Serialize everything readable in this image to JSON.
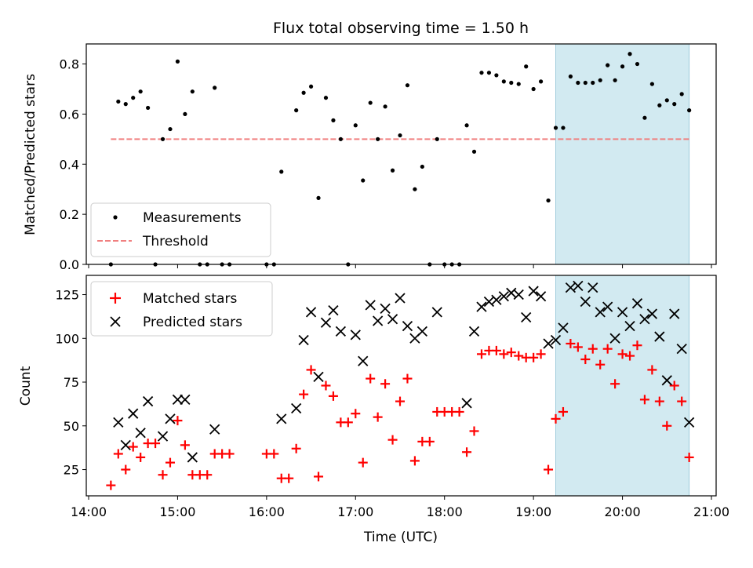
{
  "chart_data": [
    {
      "type": "scatter",
      "title": "Flux total observing time = 1.50 h",
      "ylabel": "Matched/Predicted stars",
      "xlim": [
        "14:00",
        "21:00"
      ],
      "ylim": [
        0,
        0.88
      ],
      "yticks": [
        "0.0",
        "0.2",
        "0.4",
        "0.6",
        "0.8"
      ],
      "legend_position": "lower-left",
      "highlight_window": {
        "start": "19:15",
        "end": "20:45",
        "color": "#add8e6"
      },
      "threshold": {
        "name": "Threshold",
        "value": 0.5,
        "start": "14:15",
        "end": "20:45",
        "color": "#f08080"
      },
      "series": [
        {
          "name": "Measurements",
          "color": "#000000",
          "points": [
            [
              "14:15",
              0.0
            ],
            [
              "14:20",
              0.65
            ],
            [
              "14:25",
              0.64
            ],
            [
              "14:30",
              0.665
            ],
            [
              "14:35",
              0.69
            ],
            [
              "14:40",
              0.625
            ],
            [
              "14:45",
              0.0
            ],
            [
              "14:50",
              0.5
            ],
            [
              "14:55",
              0.54
            ],
            [
              "15:00",
              0.81
            ],
            [
              "15:05",
              0.6
            ],
            [
              "15:10",
              0.69
            ],
            [
              "15:15",
              0.0
            ],
            [
              "15:20",
              0.0
            ],
            [
              "15:25",
              0.705
            ],
            [
              "15:30",
              0.0
            ],
            [
              "15:35",
              0.0
            ],
            [
              "16:00",
              0.0
            ],
            [
              "16:05",
              0.0
            ],
            [
              "16:10",
              0.37
            ],
            [
              "16:20",
              0.615
            ],
            [
              "16:25",
              0.685
            ],
            [
              "16:30",
              0.71
            ],
            [
              "16:35",
              0.265
            ],
            [
              "16:40",
              0.665
            ],
            [
              "16:45",
              0.575
            ],
            [
              "16:50",
              0.5
            ],
            [
              "16:55",
              0.0
            ],
            [
              "17:00",
              0.555
            ],
            [
              "17:05",
              0.335
            ],
            [
              "17:10",
              0.645
            ],
            [
              "17:15",
              0.5
            ],
            [
              "17:20",
              0.63
            ],
            [
              "17:25",
              0.375
            ],
            [
              "17:30",
              0.515
            ],
            [
              "17:35",
              0.715
            ],
            [
              "17:40",
              0.3
            ],
            [
              "17:45",
              0.39
            ],
            [
              "17:50",
              0.0
            ],
            [
              "17:55",
              0.5
            ],
            [
              "18:00",
              0.0
            ],
            [
              "18:05",
              0.0
            ],
            [
              "18:10",
              0.0
            ],
            [
              "18:15",
              0.555
            ],
            [
              "18:20",
              0.45
            ],
            [
              "18:25",
              0.765
            ],
            [
              "18:30",
              0.765
            ],
            [
              "18:35",
              0.755
            ],
            [
              "18:40",
              0.73
            ],
            [
              "18:45",
              0.725
            ],
            [
              "18:50",
              0.72
            ],
            [
              "18:55",
              0.79
            ],
            [
              "19:00",
              0.7
            ],
            [
              "19:05",
              0.73
            ],
            [
              "19:10",
              0.255
            ],
            [
              "19:15",
              0.545
            ],
            [
              "19:20",
              0.545
            ],
            [
              "19:25",
              0.75
            ],
            [
              "19:30",
              0.725
            ],
            [
              "19:35",
              0.725
            ],
            [
              "19:40",
              0.725
            ],
            [
              "19:45",
              0.735
            ],
            [
              "19:50",
              0.795
            ],
            [
              "19:55",
              0.735
            ],
            [
              "20:00",
              0.79
            ],
            [
              "20:05",
              0.84
            ],
            [
              "20:10",
              0.8
            ],
            [
              "20:15",
              0.585
            ],
            [
              "20:20",
              0.72
            ],
            [
              "20:25",
              0.635
            ],
            [
              "20:30",
              0.655
            ],
            [
              "20:35",
              0.64
            ],
            [
              "20:40",
              0.68
            ],
            [
              "20:45",
              0.615
            ]
          ]
        }
      ]
    },
    {
      "type": "scatter",
      "xlabel": "Time (UTC)",
      "ylabel": "Count",
      "xlim": [
        "14:00",
        "21:00"
      ],
      "xticks": [
        "14:00",
        "15:00",
        "16:00",
        "17:00",
        "18:00",
        "19:00",
        "20:00",
        "21:00"
      ],
      "ylim": [
        10,
        136
      ],
      "yticks": [
        "25",
        "50",
        "75",
        "100",
        "125"
      ],
      "legend_position": "upper-left",
      "highlight_window": {
        "start": "19:15",
        "end": "20:45",
        "color": "#add8e6"
      },
      "series": [
        {
          "name": "Matched stars",
          "marker": "plus",
          "color": "#ff0000",
          "points": [
            [
              "14:15",
              16
            ],
            [
              "14:20",
              34
            ],
            [
              "14:25",
              25
            ],
            [
              "14:30",
              38
            ],
            [
              "14:35",
              32
            ],
            [
              "14:40",
              40
            ],
            [
              "14:45",
              40
            ],
            [
              "14:50",
              22
            ],
            [
              "14:55",
              29
            ],
            [
              "15:00",
              53
            ],
            [
              "15:05",
              39
            ],
            [
              "15:10",
              22
            ],
            [
              "15:15",
              22
            ],
            [
              "15:20",
              22
            ],
            [
              "15:25",
              34
            ],
            [
              "15:30",
              34
            ],
            [
              "15:35",
              34
            ],
            [
              "16:00",
              34
            ],
            [
              "16:05",
              34
            ],
            [
              "16:10",
              20
            ],
            [
              "16:15",
              20
            ],
            [
              "16:20",
              37
            ],
            [
              "16:25",
              68
            ],
            [
              "16:30",
              82
            ],
            [
              "16:35",
              21
            ],
            [
              "16:40",
              73
            ],
            [
              "16:45",
              67
            ],
            [
              "16:50",
              52
            ],
            [
              "16:55",
              52
            ],
            [
              "17:00",
              57
            ],
            [
              "17:05",
              29
            ],
            [
              "17:10",
              77
            ],
            [
              "17:15",
              55
            ],
            [
              "17:20",
              74
            ],
            [
              "17:25",
              42
            ],
            [
              "17:30",
              64
            ],
            [
              "17:35",
              77
            ],
            [
              "17:40",
              30
            ],
            [
              "17:45",
              41
            ],
            [
              "17:50",
              41
            ],
            [
              "17:55",
              58
            ],
            [
              "18:00",
              58
            ],
            [
              "18:05",
              58
            ],
            [
              "18:10",
              58
            ],
            [
              "18:15",
              35
            ],
            [
              "18:20",
              47
            ],
            [
              "18:25",
              91
            ],
            [
              "18:30",
              93
            ],
            [
              "18:35",
              93
            ],
            [
              "18:40",
              91
            ],
            [
              "18:45",
              92
            ],
            [
              "18:50",
              90
            ],
            [
              "18:55",
              89
            ],
            [
              "19:00",
              89
            ],
            [
              "19:05",
              91
            ],
            [
              "19:10",
              25
            ],
            [
              "19:15",
              54
            ],
            [
              "19:20",
              58
            ],
            [
              "19:25",
              97
            ],
            [
              "19:30",
              95
            ],
            [
              "19:35",
              88
            ],
            [
              "19:40",
              94
            ],
            [
              "19:45",
              85
            ],
            [
              "19:50",
              94
            ],
            [
              "19:55",
              74
            ],
            [
              "20:00",
              91
            ],
            [
              "20:05",
              90
            ],
            [
              "20:10",
              96
            ],
            [
              "20:15",
              65
            ],
            [
              "20:20",
              82
            ],
            [
              "20:25",
              64
            ],
            [
              "20:30",
              50
            ],
            [
              "20:35",
              73
            ],
            [
              "20:40",
              64
            ],
            [
              "20:45",
              32
            ]
          ]
        },
        {
          "name": "Predicted stars",
          "marker": "x",
          "color": "#000000",
          "points": [
            [
              "14:20",
              52
            ],
            [
              "14:25",
              39
            ],
            [
              "14:30",
              57
            ],
            [
              "14:35",
              46
            ],
            [
              "14:40",
              64
            ],
            [
              "14:50",
              44
            ],
            [
              "14:55",
              54
            ],
            [
              "15:00",
              65
            ],
            [
              "15:05",
              65
            ],
            [
              "15:10",
              32
            ],
            [
              "15:25",
              48
            ],
            [
              "16:10",
              54
            ],
            [
              "16:20",
              60
            ],
            [
              "16:25",
              99
            ],
            [
              "16:30",
              115
            ],
            [
              "16:35",
              78
            ],
            [
              "16:40",
              109
            ],
            [
              "16:45",
              116
            ],
            [
              "16:50",
              104
            ],
            [
              "17:00",
              102
            ],
            [
              "17:05",
              87
            ],
            [
              "17:10",
              119
            ],
            [
              "17:15",
              110
            ],
            [
              "17:20",
              117
            ],
            [
              "17:25",
              111
            ],
            [
              "17:30",
              123
            ],
            [
              "17:35",
              107
            ],
            [
              "17:40",
              100
            ],
            [
              "17:45",
              104
            ],
            [
              "17:55",
              115
            ],
            [
              "18:15",
              63
            ],
            [
              "18:20",
              104
            ],
            [
              "18:25",
              118
            ],
            [
              "18:30",
              121
            ],
            [
              "18:35",
              122
            ],
            [
              "18:40",
              124
            ],
            [
              "18:45",
              126
            ],
            [
              "18:50",
              125
            ],
            [
              "18:55",
              112
            ],
            [
              "19:00",
              127
            ],
            [
              "19:05",
              124
            ],
            [
              "19:10",
              97
            ],
            [
              "19:15",
              99
            ],
            [
              "19:20",
              106
            ],
            [
              "19:25",
              129
            ],
            [
              "19:30",
              130
            ],
            [
              "19:35",
              121
            ],
            [
              "19:40",
              129
            ],
            [
              "19:45",
              115
            ],
            [
              "19:50",
              118
            ],
            [
              "19:55",
              100
            ],
            [
              "20:00",
              115
            ],
            [
              "20:05",
              107
            ],
            [
              "20:10",
              120
            ],
            [
              "20:15",
              111
            ],
            [
              "20:20",
              114
            ],
            [
              "20:25",
              101
            ],
            [
              "20:30",
              76
            ],
            [
              "20:35",
              114
            ],
            [
              "20:40",
              94
            ],
            [
              "20:45",
              52
            ]
          ]
        }
      ]
    }
  ]
}
